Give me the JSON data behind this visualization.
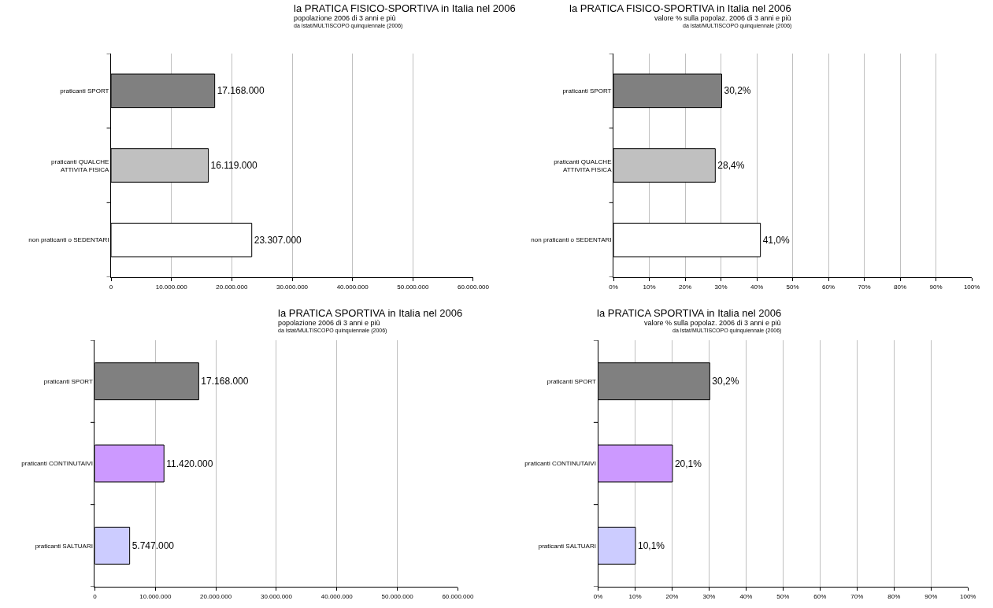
{
  "chart_data": [
    {
      "type": "bar",
      "orientation": "horizontal",
      "title": "la PRATICA FISICO-SPORTIVA in Italia nel 2006",
      "subtitle": "popolazione 2006 di 3 anni e più",
      "annotations": [
        "da Istat/MULTISCOPO quinquiennale (2006)"
      ],
      "categories": [
        "praticanti SPORT",
        "praticanti QUALCHE ATTIVITA FISICA",
        "non praticanti o SEDENTARI"
      ],
      "values": [
        17168000,
        16119000,
        23307000
      ],
      "colors": [
        "#808080",
        "#c0c0c0",
        "#ffffff"
      ],
      "value_labels": [
        "17.168.000",
        "16.119.000",
        "23.307.000"
      ],
      "xlim": [
        0,
        60000000
      ],
      "xticks": [
        0,
        {
          "value": 10000000,
          "label": "10.000.000"
        },
        {
          "value": 20000000,
          "label": "20.000.000"
        },
        {
          "value": 30000000,
          "label": "30.000.000"
        },
        {
          "value": 40000000,
          "label": "40.000.000"
        },
        {
          "value": 50000000,
          "label": "50.000.000"
        },
        {
          "value": 60000000,
          "label": "60.000.000"
        }
      ],
      "grid": "x"
    },
    {
      "type": "bar",
      "orientation": "horizontal",
      "title": "la PRATICA FISICO-SPORTIVA in Italia nel 2006",
      "subtitle": "valore % sulla popolaz. 2006 di 3 anni e più",
      "annotations": [
        "da Istat/MULTISCOPO quinquiennale (2006)"
      ],
      "categories": [
        "praticanti SPORT",
        "praticanti QUALCHE ATTIVITA FISICA",
        "non praticanti o SEDENTARI"
      ],
      "values": [
        30.2,
        28.4,
        41.0
      ],
      "colors": [
        "#808080",
        "#c0c0c0",
        "#ffffff"
      ],
      "value_labels": [
        "30,2%",
        "28,4%",
        "41,0%"
      ],
      "xlim": [
        0,
        100
      ],
      "xticks": [
        {
          "value": 0,
          "label": "0%"
        },
        {
          "value": 10,
          "label": "10%"
        },
        {
          "value": 20,
          "label": "20%"
        },
        {
          "value": 30,
          "label": "30%"
        },
        {
          "value": 40,
          "label": "40%"
        },
        {
          "value": 50,
          "label": "50%"
        },
        {
          "value": 60,
          "label": "60%"
        },
        {
          "value": 70,
          "label": "70%"
        },
        {
          "value": 80,
          "label": "80%"
        },
        {
          "value": 90,
          "label": "90%"
        },
        {
          "value": 100,
          "label": "100%"
        }
      ],
      "grid": "x"
    },
    {
      "type": "bar",
      "orientation": "horizontal",
      "title": "la PRATICA SPORTIVA in Italia nel 2006",
      "subtitle": "popolazione 2006 di 3 anni e più",
      "annotations": [
        "da Istat/MULTISCOPO quinquiennale (2006)"
      ],
      "categories": [
        "praticanti SPORT",
        "praticanti CONTINUTAIVI",
        "praticanti SALTUARI"
      ],
      "values": [
        17168000,
        11420000,
        5747000
      ],
      "colors": [
        "#808080",
        "#cc99ff",
        "#ccccff"
      ],
      "value_labels": [
        "17.168.000",
        "11.420.000",
        "5.747.000"
      ],
      "xlim": [
        0,
        60000000
      ],
      "xticks": [
        0,
        {
          "value": 10000000,
          "label": "10.000.000"
        },
        {
          "value": 20000000,
          "label": "20.000.000"
        },
        {
          "value": 30000000,
          "label": "30.000.000"
        },
        {
          "value": 40000000,
          "label": "40.000.000"
        },
        {
          "value": 50000000,
          "label": "50.000.000"
        },
        {
          "value": 60000000,
          "label": "60.000.000"
        }
      ],
      "grid": "x"
    },
    {
      "type": "bar",
      "orientation": "horizontal",
      "title": "la PRATICA SPORTIVA in Italia nel 2006",
      "subtitle": "valore % sulla popolaz. 2006 di 3 anni e più",
      "annotations": [
        "da Istat/MULTISCOPO quinquiennale (2006)"
      ],
      "categories": [
        "praticanti SPORT",
        "praticanti CONTINUTAIVI",
        "praticanti SALTUARI"
      ],
      "values": [
        30.2,
        20.1,
        10.1
      ],
      "colors": [
        "#808080",
        "#cc99ff",
        "#ccccff"
      ],
      "value_labels": [
        "30,2%",
        "20,1%",
        "10,1%"
      ],
      "xlim": [
        0,
        100
      ],
      "xticks": [
        {
          "value": 0,
          "label": "0%"
        },
        {
          "value": 10,
          "label": "10%"
        },
        {
          "value": 20,
          "label": "20%"
        },
        {
          "value": 30,
          "label": "30%"
        },
        {
          "value": 40,
          "label": "40%"
        },
        {
          "value": 50,
          "label": "50%"
        },
        {
          "value": 60,
          "label": "60%"
        },
        {
          "value": 70,
          "label": "70%"
        },
        {
          "value": 80,
          "label": "80%"
        },
        {
          "value": 90,
          "label": "90%"
        },
        {
          "value": 100,
          "label": "100%"
        }
      ],
      "grid": "x"
    }
  ]
}
